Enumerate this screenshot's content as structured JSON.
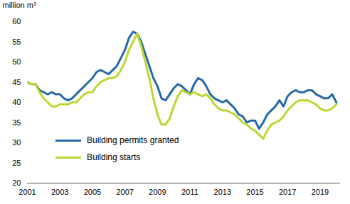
{
  "chart_data": {
    "type": "line",
    "y_label": "million m³",
    "x": [
      2001,
      2001.25,
      2001.5,
      2001.75,
      2002,
      2002.25,
      2002.5,
      2002.75,
      2003,
      2003.25,
      2003.5,
      2003.75,
      2004,
      2004.25,
      2004.5,
      2004.75,
      2005,
      2005.25,
      2005.5,
      2005.75,
      2006,
      2006.25,
      2006.5,
      2006.75,
      2007,
      2007.25,
      2007.5,
      2007.75,
      2008,
      2008.25,
      2008.5,
      2008.75,
      2009,
      2009.25,
      2009.5,
      2009.75,
      2010,
      2010.25,
      2010.5,
      2010.75,
      2011,
      2011.25,
      2011.5,
      2011.75,
      2012,
      2012.25,
      2012.5,
      2012.75,
      2013,
      2013.25,
      2013.5,
      2013.75,
      2014,
      2014.25,
      2014.5,
      2014.75,
      2015,
      2015.25,
      2015.5,
      2015.75,
      2016,
      2016.25,
      2016.5,
      2016.75,
      2017,
      2017.25,
      2017.5,
      2017.75,
      2018,
      2018.25,
      2018.5,
      2018.75,
      2019,
      2019.25,
      2019.5,
      2019.75,
      2020
    ],
    "series": [
      {
        "name": "Building permits granted",
        "color": "#2469a6",
        "values": [
          45,
          44.5,
          44.5,
          43,
          42.5,
          42,
          42.5,
          42,
          42,
          41,
          40.5,
          41,
          42,
          43,
          44,
          45,
          46,
          47.5,
          48,
          47.5,
          47,
          48,
          49,
          51,
          53,
          56,
          57.5,
          57,
          55,
          52,
          49,
          46,
          44,
          41,
          40.5,
          42,
          43.5,
          44.5,
          44,
          43,
          42,
          44.5,
          46,
          45.5,
          44,
          42,
          41,
          40.5,
          40,
          40.5,
          39.5,
          38.5,
          37,
          36.5,
          35,
          35.5,
          35.5,
          33.5,
          35,
          37,
          38,
          39,
          40.5,
          39,
          41.5,
          42.5,
          43,
          42.5,
          42.5,
          43,
          43,
          42,
          41.5,
          41,
          41,
          42,
          40
        ]
      },
      {
        "name": "Building starts",
        "color": "#bcd631",
        "values": [
          45,
          44.5,
          44.5,
          42.5,
          41,
          40,
          39,
          39,
          39.5,
          39.5,
          39.5,
          40,
          40,
          41,
          42,
          42.5,
          42.5,
          44,
          45,
          45.5,
          46,
          46,
          46.5,
          48,
          50,
          53,
          55,
          57,
          54,
          50,
          46,
          41,
          37,
          34.5,
          34.5,
          36,
          39,
          41.5,
          43,
          42.5,
          42,
          42.5,
          42,
          41.5,
          42,
          41,
          39.5,
          38.5,
          38,
          38,
          37.5,
          37,
          36,
          35,
          34.5,
          33.5,
          33,
          32,
          31,
          33,
          34.5,
          35,
          35.5,
          36.5,
          38,
          39,
          40,
          40.5,
          40.5,
          40.5,
          40,
          39.5,
          38.5,
          38,
          38,
          38.5,
          39.5
        ]
      }
    ],
    "xlim": [
      2001,
      2020.25
    ],
    "xticks": [
      2001,
      2003,
      2005,
      2007,
      2009,
      2011,
      2013,
      2015,
      2017,
      2019
    ],
    "ylim": [
      20,
      60
    ],
    "yticks": [
      20,
      25,
      30,
      35,
      40,
      45,
      50,
      55,
      60
    ],
    "grid": false,
    "legend": "bottom-left"
  }
}
